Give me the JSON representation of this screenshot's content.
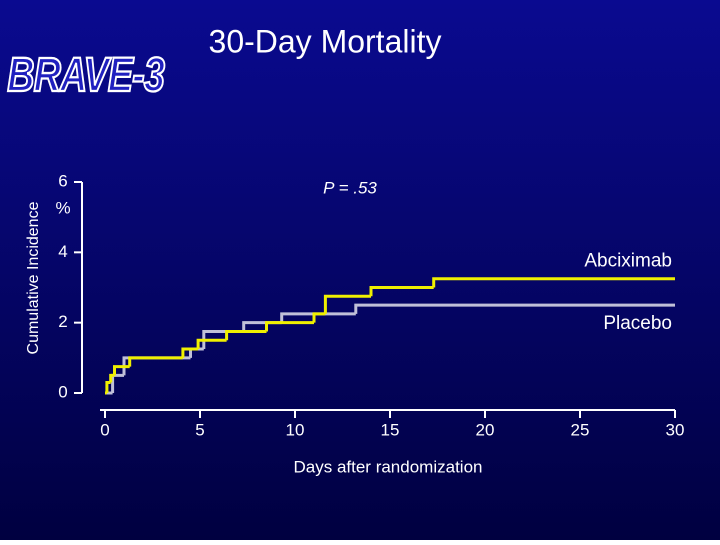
{
  "chart_data": {
    "type": "step",
    "title": "30-Day Mortality",
    "logo": "BRAVE-3",
    "annotation": "P = .53",
    "xlabel": "Days after randomization",
    "ylabel": "Cumulative Incidence",
    "y_unit": "%",
    "xlim": [
      0,
      30
    ],
    "xticks": [
      0,
      5,
      10,
      15,
      20,
      25,
      30
    ],
    "ylim": [
      0,
      6
    ],
    "yticks": [
      0,
      2,
      4,
      6
    ],
    "series": [
      {
        "name": "Abciximab",
        "color": "#f0f000",
        "x": [
          0,
          0.1,
          0.3,
          0.5,
          1.3,
          4.1,
          4.9,
          6.4,
          8.5,
          11,
          11.6,
          14,
          17.3,
          30
        ],
        "values": [
          0,
          0.3,
          0.5,
          0.75,
          1.0,
          1.25,
          1.5,
          1.75,
          2.0,
          2.25,
          2.75,
          3.0,
          3.25,
          3.25
        ]
      },
      {
        "name": "Placebo",
        "color": "#c0c0d8",
        "x": [
          0,
          0.4,
          1.0,
          4.5,
          5.2,
          7.3,
          9.3,
          13.2,
          30
        ],
        "values": [
          0,
          0.5,
          1.0,
          1.25,
          1.75,
          2.0,
          2.25,
          2.5,
          2.5
        ]
      }
    ]
  }
}
